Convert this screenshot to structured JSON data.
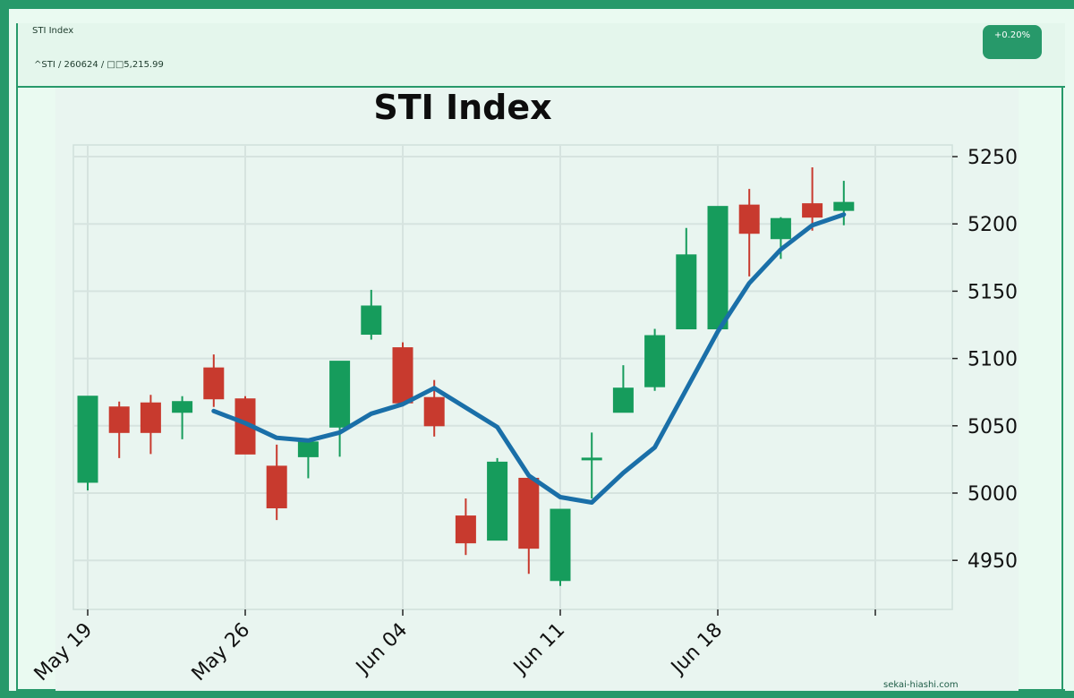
{
  "header": {
    "title": "STI Index",
    "subtitle": "^STI / 260624 / □□5,215.99",
    "change_badge": "+0.20%"
  },
  "credit": "sekai-hiashi.com",
  "colors": {
    "up": "#169c5c",
    "down": "#c83a2e",
    "ma": "#1a6fa8",
    "frame": "#27996a"
  },
  "chart_data": {
    "type": "candlestick",
    "title": "STI Index",
    "ylim": [
      4915,
      5258
    ],
    "yticks": [
      4950,
      5000,
      5050,
      5100,
      5150,
      5200,
      5250
    ],
    "xlim": [
      -1,
      28
    ],
    "xticks": [
      {
        "x": 0,
        "label": "May 19"
      },
      {
        "x": 5,
        "label": "May 26"
      },
      {
        "x": 10,
        "label": "Jun 04"
      },
      {
        "x": 15,
        "label": "Jun 11"
      },
      {
        "x": 20,
        "label": "Jun 18"
      },
      {
        "x": 25,
        "label": ""
      }
    ],
    "candles": [
      {
        "x": 0,
        "open": 5008,
        "high": 5072,
        "low": 5002,
        "close": 5072
      },
      {
        "x": 1,
        "open": 5064,
        "high": 5068,
        "low": 5026,
        "close": 5045
      },
      {
        "x": 2,
        "open": 5067,
        "high": 5073,
        "low": 5029,
        "close": 5045
      },
      {
        "x": 3,
        "open": 5060,
        "high": 5072,
        "low": 5040,
        "close": 5068
      },
      {
        "x": 4,
        "open": 5093,
        "high": 5103,
        "low": 5064,
        "close": 5070
      },
      {
        "x": 5,
        "open": 5070,
        "high": 5072,
        "low": 5029,
        "close": 5029
      },
      {
        "x": 6,
        "open": 5020,
        "high": 5036,
        "low": 4980,
        "close": 4989
      },
      {
        "x": 7,
        "open": 5027,
        "high": 5040,
        "low": 5011,
        "close": 5038
      },
      {
        "x": 8,
        "open": 5049,
        "high": 5098,
        "low": 5027,
        "close": 5098
      },
      {
        "x": 9,
        "open": 5118,
        "high": 5151,
        "low": 5114,
        "close": 5139
      },
      {
        "x": 10,
        "open": 5108,
        "high": 5112,
        "low": 5066,
        "close": 5067
      },
      {
        "x": 11,
        "open": 5071,
        "high": 5084,
        "low": 5042,
        "close": 5050
      },
      {
        "x": 12,
        "open": 4983,
        "high": 4996,
        "low": 4954,
        "close": 4963
      },
      {
        "x": 13,
        "open": 4965,
        "high": 5026,
        "low": 4965,
        "close": 5023
      },
      {
        "x": 14,
        "open": 5011,
        "high": 5011,
        "low": 4940,
        "close": 4959
      },
      {
        "x": 15,
        "open": 4935,
        "high": 4988,
        "low": 4931,
        "close": 4988
      },
      {
        "x": 16,
        "open": 5026,
        "high": 5045,
        "low": 4996,
        "close": 5026
      },
      {
        "x": 17,
        "open": 5060,
        "high": 5095,
        "low": 5060,
        "close": 5078
      },
      {
        "x": 18,
        "open": 5079,
        "high": 5122,
        "low": 5076,
        "close": 5117
      },
      {
        "x": 19,
        "open": 5122,
        "high": 5197,
        "low": 5122,
        "close": 5177
      },
      {
        "x": 20,
        "open": 5122,
        "high": 5213,
        "low": 5122,
        "close": 5213
      },
      {
        "x": 21,
        "open": 5214,
        "high": 5226,
        "low": 5161,
        "close": 5193
      },
      {
        "x": 22,
        "open": 5189,
        "high": 5205,
        "low": 5174,
        "close": 5204
      },
      {
        "x": 23,
        "open": 5215,
        "high": 5242,
        "low": 5195,
        "close": 5205
      },
      {
        "x": 24,
        "open": 5210,
        "high": 5232,
        "low": 5199,
        "close": 5216
      }
    ],
    "moving_average": [
      {
        "x": 4,
        "y": 5061
      },
      {
        "x": 5,
        "y": 5052
      },
      {
        "x": 6,
        "y": 5041
      },
      {
        "x": 7,
        "y": 5039
      },
      {
        "x": 8,
        "y": 5045
      },
      {
        "x": 9,
        "y": 5059
      },
      {
        "x": 10,
        "y": 5066
      },
      {
        "x": 11,
        "y": 5078
      },
      {
        "x": 13,
        "y": 5049
      },
      {
        "x": 14,
        "y": 5013
      },
      {
        "x": 15,
        "y": 4997
      },
      {
        "x": 16,
        "y": 4993
      },
      {
        "x": 17,
        "y": 5015
      },
      {
        "x": 18,
        "y": 5034
      },
      {
        "x": 19,
        "y": 5077
      },
      {
        "x": 20,
        "y": 5120
      },
      {
        "x": 21,
        "y": 5156
      },
      {
        "x": 22,
        "y": 5181
      },
      {
        "x": 23,
        "y": 5199
      },
      {
        "x": 24,
        "y": 5207
      }
    ],
    "grid": true,
    "legend": "none"
  }
}
